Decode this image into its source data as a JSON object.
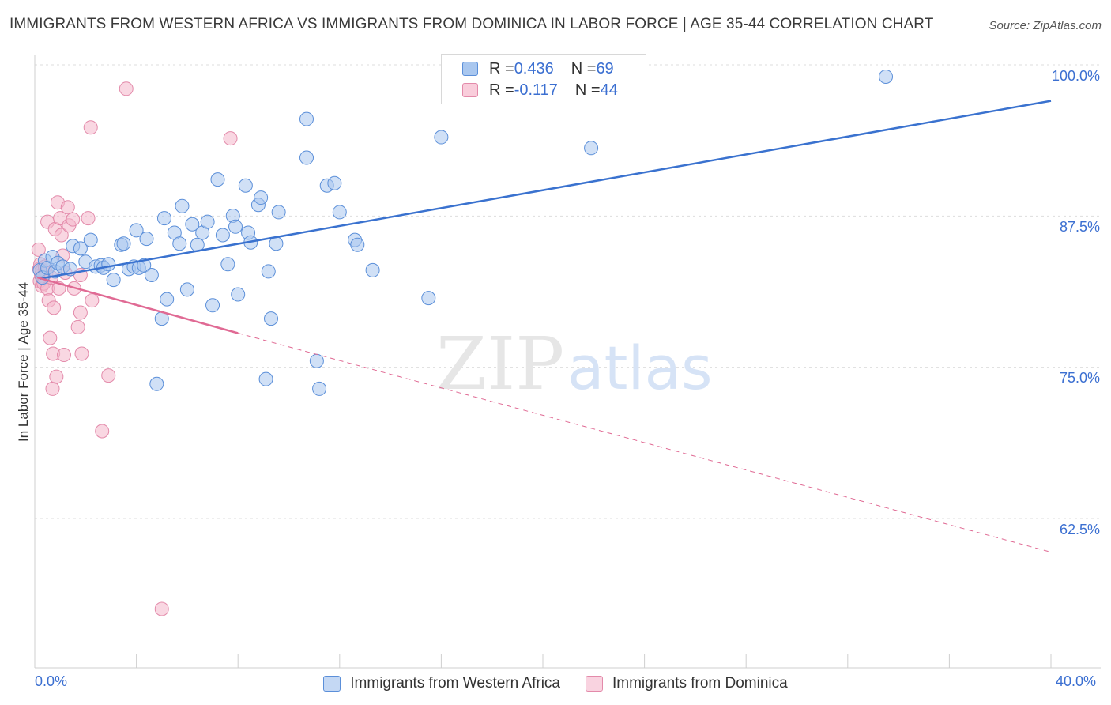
{
  "header": {
    "title": "IMMIGRANTS FROM WESTERN AFRICA VS IMMIGRANTS FROM DOMINICA IN LABOR FORCE | AGE 35-44 CORRELATION CHART",
    "source": "Source: ZipAtlas.com"
  },
  "watermark": {
    "zip": "ZIP",
    "atlas": "atlas"
  },
  "legend_top": {
    "rows": [
      {
        "r_label": "R = ",
        "r_value": "0.436",
        "n_label": "N = ",
        "n_value": "69"
      },
      {
        "r_label": "R = ",
        "r_value": "-0.117",
        "n_label": "N = ",
        "n_value": "44"
      }
    ]
  },
  "legend_bottom": {
    "items": [
      {
        "label": "Immigrants from Western Africa"
      },
      {
        "label": "Immigrants from Dominica"
      }
    ]
  },
  "colors": {
    "blue_fill": "#a9c7ef",
    "blue_stroke": "#5b8fd9",
    "blue_line": "#3a72cf",
    "pink_fill": "#f4b6ca",
    "pink_stroke": "#e38aaa",
    "pink_line": "#e06a94",
    "tick_label": "#3b6fd1",
    "grid": "#dddddd"
  },
  "chart_data": {
    "type": "scatter",
    "title": "IMMIGRANTS FROM WESTERN AFRICA VS IMMIGRANTS FROM DOMINICA IN LABOR FORCE | AGE 35-44 CORRELATION CHART",
    "xlabel": "",
    "ylabel": "In Labor Force | Age 35-44",
    "xlim": [
      0,
      40
    ],
    "ylim": [
      51.5,
      101
    ],
    "x_tick_labels": [
      "0.0%",
      "40.0%"
    ],
    "y_ticks": [
      62.5,
      75.0,
      87.5,
      100.0
    ],
    "y_tick_labels": [
      "62.5%",
      "75.0%",
      "87.5%",
      "100.0%"
    ],
    "grid": true,
    "legend_placement": "top-center",
    "series": [
      {
        "name": "Immigrants from Western Africa",
        "r": 0.436,
        "n": 69,
        "trend": {
          "x": [
            0.2,
            40.0
          ],
          "y": [
            83.3,
            98.0
          ],
          "style": "solid"
        },
        "points": [
          [
            0.2,
            84.0
          ],
          [
            0.3,
            83.4
          ],
          [
            0.4,
            84.8
          ],
          [
            0.5,
            84.2
          ],
          [
            0.7,
            85.1
          ],
          [
            0.8,
            83.9
          ],
          [
            0.9,
            84.6
          ],
          [
            1.1,
            84.3
          ],
          [
            1.4,
            84.1
          ],
          [
            1.5,
            86.0
          ],
          [
            1.8,
            85.8
          ],
          [
            2.0,
            84.7
          ],
          [
            2.2,
            86.5
          ],
          [
            2.4,
            84.3
          ],
          [
            2.6,
            84.4
          ],
          [
            2.7,
            84.2
          ],
          [
            2.9,
            84.5
          ],
          [
            3.1,
            83.2
          ],
          [
            3.4,
            86.1
          ],
          [
            3.5,
            86.2
          ],
          [
            3.7,
            84.1
          ],
          [
            3.9,
            84.3
          ],
          [
            4.0,
            87.3
          ],
          [
            4.1,
            84.2
          ],
          [
            4.3,
            84.4
          ],
          [
            4.4,
            86.6
          ],
          [
            4.6,
            83.6
          ],
          [
            4.8,
            74.6
          ],
          [
            5.0,
            80.0
          ],
          [
            5.1,
            88.3
          ],
          [
            5.2,
            81.6
          ],
          [
            5.5,
            87.1
          ],
          [
            5.7,
            86.2
          ],
          [
            5.8,
            89.3
          ],
          [
            6.0,
            82.4
          ],
          [
            6.2,
            87.8
          ],
          [
            6.4,
            86.1
          ],
          [
            6.6,
            87.1
          ],
          [
            6.8,
            88.0
          ],
          [
            7.0,
            81.1
          ],
          [
            7.2,
            91.5
          ],
          [
            7.4,
            86.9
          ],
          [
            7.6,
            84.5
          ],
          [
            7.8,
            88.5
          ],
          [
            7.9,
            87.6
          ],
          [
            8.0,
            82.0
          ],
          [
            8.3,
            91.0
          ],
          [
            8.4,
            87.1
          ],
          [
            8.5,
            86.3
          ],
          [
            8.8,
            89.4
          ],
          [
            8.9,
            90.0
          ],
          [
            9.1,
            75.0
          ],
          [
            9.2,
            83.9
          ],
          [
            9.3,
            80.0
          ],
          [
            9.5,
            86.2
          ],
          [
            9.6,
            88.8
          ],
          [
            10.7,
            96.5
          ],
          [
            10.7,
            93.3
          ],
          [
            11.1,
            76.5
          ],
          [
            11.2,
            74.2
          ],
          [
            11.5,
            91.0
          ],
          [
            11.8,
            91.2
          ],
          [
            12.0,
            88.8
          ],
          [
            12.6,
            86.5
          ],
          [
            12.7,
            86.1
          ],
          [
            13.3,
            84.0
          ],
          [
            15.5,
            81.7
          ],
          [
            16.0,
            95.0
          ],
          [
            21.9,
            94.1
          ],
          [
            33.5,
            100.0
          ]
        ]
      },
      {
        "name": "Immigrants from Dominica",
        "r": -0.117,
        "n": 44,
        "trend": {
          "x": [
            0.1,
            8.0
          ],
          "y": [
            83.4,
            78.8
          ],
          "dashed_to": {
            "x": 40.0,
            "y": 60.7
          }
        },
        "points": [
          [
            0.15,
            85.7
          ],
          [
            0.18,
            84.1
          ],
          [
            0.2,
            83.1
          ],
          [
            0.22,
            84.5
          ],
          [
            0.25,
            83.6
          ],
          [
            0.28,
            82.7
          ],
          [
            0.3,
            84.0
          ],
          [
            0.33,
            83.5
          ],
          [
            0.35,
            82.9
          ],
          [
            0.4,
            84.3
          ],
          [
            0.45,
            83.8
          ],
          [
            0.5,
            82.5
          ],
          [
            0.5,
            88.0
          ],
          [
            0.55,
            81.5
          ],
          [
            0.6,
            78.4
          ],
          [
            0.65,
            83.4
          ],
          [
            0.7,
            74.2
          ],
          [
            0.72,
            77.1
          ],
          [
            0.75,
            80.9
          ],
          [
            0.8,
            87.4
          ],
          [
            0.85,
            75.2
          ],
          [
            0.9,
            89.6
          ],
          [
            0.95,
            82.5
          ],
          [
            1.0,
            88.3
          ],
          [
            1.05,
            86.9
          ],
          [
            1.1,
            85.2
          ],
          [
            1.15,
            77.0
          ],
          [
            1.2,
            83.8
          ],
          [
            1.3,
            89.2
          ],
          [
            1.35,
            87.7
          ],
          [
            1.5,
            88.2
          ],
          [
            1.55,
            82.5
          ],
          [
            1.7,
            79.3
          ],
          [
            1.8,
            80.5
          ],
          [
            1.8,
            83.6
          ],
          [
            1.85,
            77.1
          ],
          [
            2.1,
            88.3
          ],
          [
            2.25,
            81.5
          ],
          [
            2.2,
            95.8
          ],
          [
            2.65,
            70.7
          ],
          [
            2.9,
            75.3
          ],
          [
            3.6,
            99.0
          ],
          [
            5.0,
            56.0
          ],
          [
            7.7,
            94.9
          ]
        ]
      }
    ]
  }
}
